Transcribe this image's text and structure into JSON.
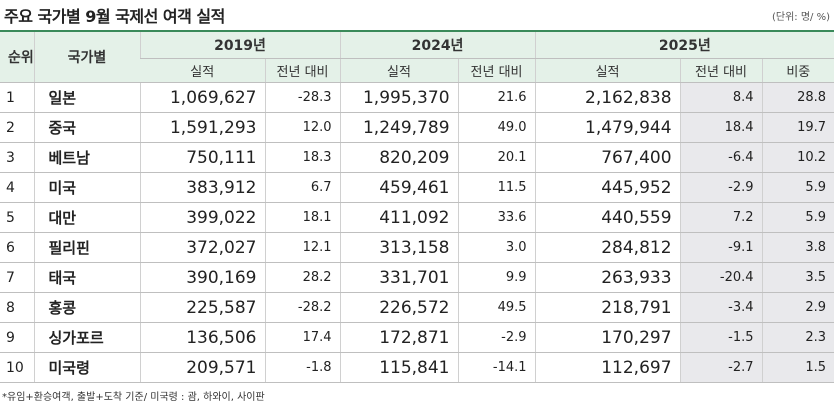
{
  "header": {
    "title": "주요 국가별 9월 국제선 여객 실적",
    "unit": "(단위: 명/ %)"
  },
  "table": {
    "group_headers": [
      "순위",
      "국가별",
      "2019년",
      "2024년",
      "2025년"
    ],
    "sub_headers": [
      "실적",
      "전년 대비",
      "실적",
      "전년 대비",
      "실적",
      "전년 대비",
      "비중"
    ],
    "rows": [
      [
        "1",
        "일본",
        "1,069,627",
        "-28.3",
        "1,995,370",
        "21.6",
        "2,162,838",
        "8.4",
        "28.8"
      ],
      [
        "2",
        "중국",
        "1,591,293",
        "12.0",
        "1,249,789",
        "49.0",
        "1,479,944",
        "18.4",
        "19.7"
      ],
      [
        "3",
        "베트남",
        "750,111",
        "18.3",
        "820,209",
        "20.1",
        "767,400",
        "-6.4",
        "10.2"
      ],
      [
        "4",
        "미국",
        "383,912",
        "6.7",
        "459,461",
        "11.5",
        "445,952",
        "-2.9",
        "5.9"
      ],
      [
        "5",
        "대만",
        "399,022",
        "18.1",
        "411,092",
        "33.6",
        "440,559",
        "7.2",
        "5.9"
      ],
      [
        "6",
        "필리핀",
        "372,027",
        "12.1",
        "313,158",
        "3.0",
        "284,812",
        "-9.1",
        "3.8"
      ],
      [
        "7",
        "태국",
        "390,169",
        "28.2",
        "331,701",
        "9.9",
        "263,933",
        "-20.4",
        "3.5"
      ],
      [
        "8",
        "홍콩",
        "225,587",
        "-28.2",
        "226,572",
        "49.5",
        "218,791",
        "-3.4",
        "2.9"
      ],
      [
        "9",
        "싱가포르",
        "136,506",
        "17.4",
        "172,871",
        "-2.9",
        "170,297",
        "-1.5",
        "2.3"
      ],
      [
        "10",
        "미국령",
        "209,571",
        "-1.8",
        "115,841",
        "-14.1",
        "112,697",
        "-2.7",
        "1.5"
      ]
    ]
  },
  "footnote": "*유임+환승여객, 출발+도착 기준/ 미국령 : 괌, 하와이, 사이판"
}
